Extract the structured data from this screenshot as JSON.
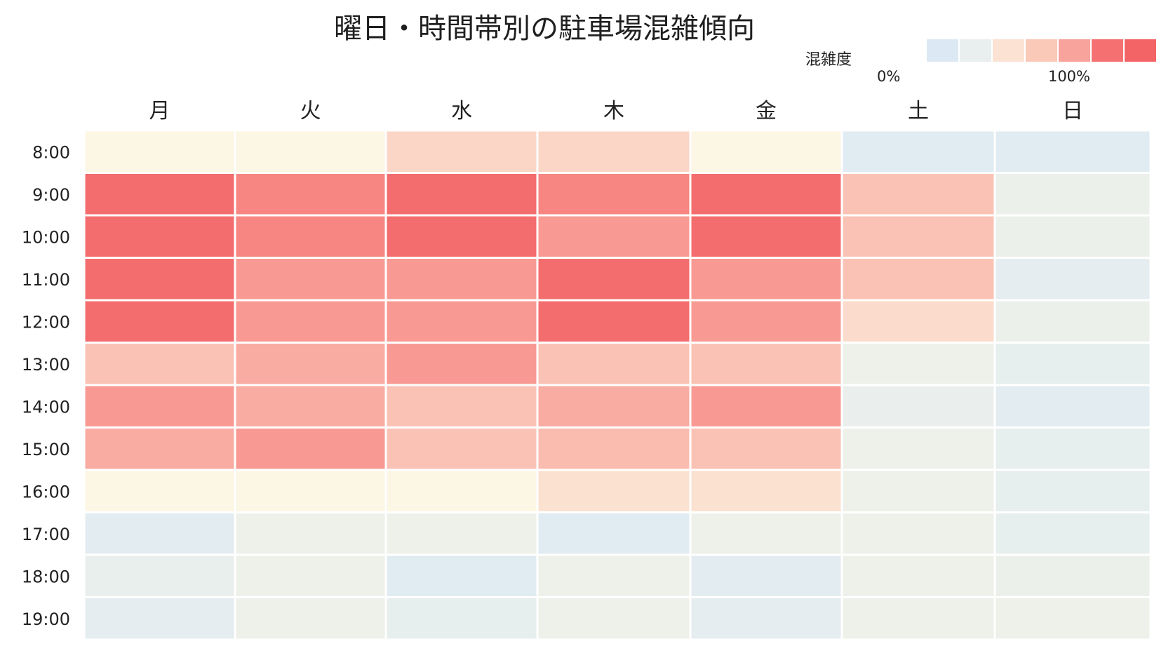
{
  "chart_data": {
    "type": "heatmap",
    "title": "曜日・時間帯別の駐車場混雑傾向",
    "days": [
      "月",
      "火",
      "水",
      "木",
      "金",
      "土",
      "日"
    ],
    "hours": [
      "8:00",
      "9:00",
      "10:00",
      "11:00",
      "12:00",
      "13:00",
      "14:00",
      "15:00",
      "16:00",
      "17:00",
      "18:00",
      "19:00"
    ],
    "values": [
      [
        0.3,
        0.3,
        0.45,
        0.45,
        0.3,
        0.05,
        0.05
      ],
      [
        0.95,
        0.82,
        0.95,
        0.82,
        0.95,
        0.55,
        0.18
      ],
      [
        0.95,
        0.82,
        0.95,
        0.72,
        0.95,
        0.55,
        0.18
      ],
      [
        0.95,
        0.72,
        0.72,
        0.95,
        0.72,
        0.55,
        0.1
      ],
      [
        0.95,
        0.72,
        0.72,
        0.95,
        0.72,
        0.42,
        0.18
      ],
      [
        0.55,
        0.65,
        0.72,
        0.55,
        0.55,
        0.2,
        0.12
      ],
      [
        0.72,
        0.65,
        0.55,
        0.65,
        0.72,
        0.15,
        0.08
      ],
      [
        0.65,
        0.72,
        0.55,
        0.58,
        0.55,
        0.2,
        0.12
      ],
      [
        0.3,
        0.3,
        0.3,
        0.4,
        0.4,
        0.2,
        0.12
      ],
      [
        0.08,
        0.2,
        0.2,
        0.05,
        0.2,
        0.2,
        0.12
      ],
      [
        0.14,
        0.2,
        0.05,
        0.2,
        0.08,
        0.2,
        0.18
      ],
      [
        0.1,
        0.2,
        0.12,
        0.2,
        0.1,
        0.2,
        0.2
      ]
    ],
    "colorbar": {
      "label": "混雑度",
      "min_label": "0%",
      "max_label": "100%",
      "colors": [
        "#dce9f5",
        "#e9efee",
        "#fbe2d3",
        "#fac9b8",
        "#f8a39c",
        "#f57070",
        "#f36466"
      ]
    },
    "scale_colors": [
      [
        0.0,
        "#dce9f5"
      ],
      [
        0.2,
        "#eef1ea"
      ],
      [
        0.3,
        "#fcf6e4"
      ],
      [
        0.45,
        "#fbd6c6"
      ],
      [
        0.6,
        "#f9b8ac"
      ],
      [
        0.75,
        "#f8938d"
      ],
      [
        1.0,
        "#f36466"
      ]
    ]
  }
}
